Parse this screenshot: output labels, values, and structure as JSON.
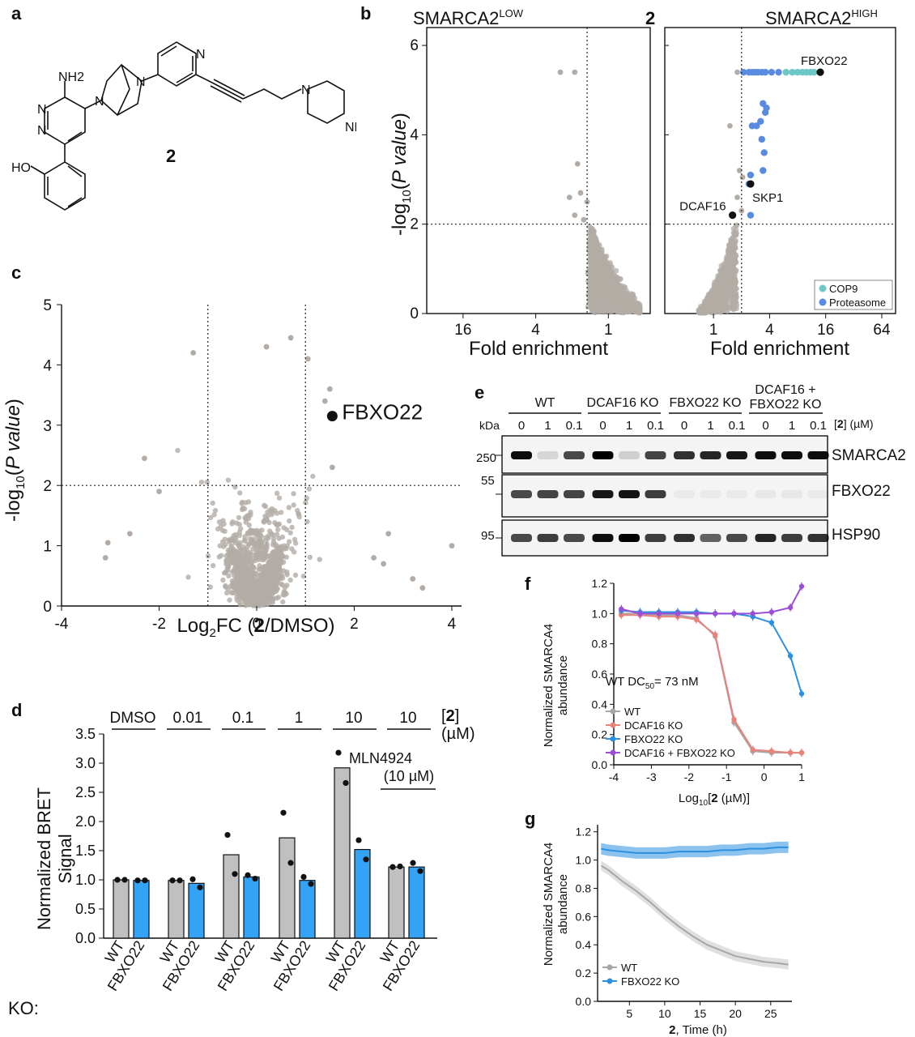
{
  "colors": {
    "gray_point": "#b3aca6",
    "cop9": "#6cc7c7",
    "proteasome": "#5b8be0",
    "bar_gray": "#c0c0c0",
    "bar_blue": "#34a3f5",
    "wt_line": "#a6a6a6",
    "dcaf16_line": "#e8837b",
    "fbxo22_line": "#2b90e0",
    "double_line": "#9b4fd6"
  },
  "panel_a": {
    "label": "a",
    "compound": "2",
    "atoms": [
      "NH2",
      "N",
      "N",
      "N",
      "N",
      "N",
      "N",
      "N",
      "NH",
      "HO"
    ]
  },
  "panel_b": {
    "label": "b",
    "left_title": "SMARCA2",
    "left_title_sup": "LOW",
    "compound": "2",
    "right_title": "SMARCA2",
    "right_title_sup": "HIGH",
    "ylabel_pre": "-log",
    "ylabel_sub": "10",
    "ylabel_italic": "P value",
    "xlabel": "Fold enrichment",
    "left_xticks": [
      "16",
      "4",
      "1"
    ],
    "right_xticks": [
      "1",
      "4",
      "16",
      "64"
    ],
    "yticks": [
      "0",
      "2",
      "4",
      "6"
    ],
    "annotations": [
      "FBXO22",
      "SKP1",
      "DCAF16"
    ],
    "legend": [
      "COP9",
      "Proteasome"
    ]
  },
  "panel_c": {
    "label": "c",
    "ylabel_pre": "-log",
    "ylabel_sub": "10",
    "ylabel_italic": "P value",
    "xlabel_pre": "Log",
    "xlabel_sub": "2",
    "xlabel_mid": "FC (",
    "xlabel_bold": "2",
    "xlabel_post": "/DMSO)",
    "xticks": [
      "-4",
      "-2",
      "0",
      "2",
      "4"
    ],
    "yticks": [
      "0",
      "1",
      "2",
      "3",
      "4",
      "5"
    ],
    "annotation": "FBXO22"
  },
  "panel_d": {
    "label": "d",
    "ylabel_1": "Normalized BRET",
    "ylabel_2": "Signal",
    "yticks": [
      "0.0",
      "0.5",
      "1.0",
      "1.5",
      "2.0",
      "2.5",
      "3.0",
      "3.5"
    ],
    "group_labels": [
      "DMSO",
      "0.01",
      "0.1",
      "1",
      "10",
      "10"
    ],
    "units_bracket_open": "[",
    "units_bold": "2",
    "units_bracket_close": "]",
    "units": "(µM)",
    "mln_1": "MLN4924",
    "mln_2": "(10 µM)",
    "ko_label": "KO:",
    "xlabels": [
      "WT",
      "FBXO22",
      "WT",
      "FBXO22",
      "WT",
      "FBXO22",
      "WT",
      "FBXO22",
      "WT",
      "FBXO22",
      "WT",
      "FBXO22"
    ]
  },
  "panel_e": {
    "label": "e",
    "groups": [
      "WT",
      "DCAF16 KO",
      "FBXO22 KO",
      "DCAF16 +",
      "FBXO22 KO"
    ],
    "doses": [
      "0",
      "1",
      "0.1",
      "0",
      "1",
      "0.1",
      "0",
      "1",
      "0.1",
      "0",
      "1",
      "0.1"
    ],
    "conc_label_open": "[",
    "conc_label_bold": "2",
    "conc_label_close": "] (µM)",
    "kda": "kDa",
    "markers": [
      "250",
      "55",
      "95"
    ],
    "blots": [
      "SMARCA2",
      "FBXO22",
      "HSP90"
    ]
  },
  "panel_f": {
    "label": "f",
    "ylabel_1": "Normalized SMARCA4",
    "ylabel_2": "abundance",
    "yticks": [
      "0.0",
      "0.2",
      "0.4",
      "0.6",
      "0.8",
      "1.0",
      "1.2"
    ],
    "xticks": [
      "-4",
      "-3",
      "-2",
      "-1",
      "0",
      "1"
    ],
    "xlabel_pre": "Log",
    "xlabel_sub": "10",
    "xlabel_bold": "2",
    "xlabel_post": " (µM)]",
    "dc50_pre": "WT DC",
    "dc50_sub": "50",
    "dc50_post": "= 73 nM",
    "legend": [
      "WT",
      "DCAF16 KO",
      "FBXO22 KO",
      "DCAF16 + FBXO22 KO"
    ]
  },
  "panel_g": {
    "label": "g",
    "ylabel_1": "Normalized SMARCA4",
    "ylabel_2": "abundance",
    "yticks": [
      "0.0",
      "0.2",
      "0.4",
      "0.6",
      "0.8",
      "1.0",
      "1.2"
    ],
    "xticks": [
      "5",
      "10",
      "15",
      "20",
      "25"
    ],
    "xlabel_bold": "2",
    "xlabel_post": ", Time (h)",
    "legend": [
      "WT",
      "FBXO22 KO"
    ]
  },
  "chart_data": [
    {
      "panel": "b-left",
      "type": "scatter",
      "title": "SMARCA2LOW",
      "xlabel": "Fold enrichment",
      "ylabel": "-log10(P value)",
      "x_scale": "log2, reversed",
      "ylim": [
        0,
        6.4
      ],
      "thresholds": {
        "x": 1.5,
        "y": 2
      },
      "series": [
        {
          "values_x": [
            2.5,
            1.9,
            1.8,
            1.7,
            2.1,
            1.9,
            1.6,
            1.5
          ],
          "values_y": [
            5.4,
            5.4,
            3.35,
            2.7,
            2.6,
            2.2,
            2.1,
            2.5
          ],
          "color": "#b3aca6"
        }
      ]
    },
    {
      "panel": "b-right",
      "type": "scatter",
      "title": "SMARCA2HIGH",
      "xlabel": "Fold enrichment",
      "x_scale": "log2",
      "ylim": [
        0,
        6.4
      ],
      "thresholds": {
        "x": 2,
        "y": 2
      },
      "series": [
        {
          "name": "COP9",
          "color": "#6cc7c7",
          "values_x": [
            6,
            7,
            8,
            9,
            10,
            11,
            12
          ],
          "values_y": [
            5.4,
            5.4,
            5.4,
            5.4,
            5.4,
            5.4,
            5.4
          ]
        },
        {
          "name": "Proteasome",
          "color": "#5b8be0",
          "values_x": [
            2.1,
            2.4,
            2.6,
            2.8,
            3,
            3.3,
            3.6,
            4.2,
            5,
            3.4,
            3.6,
            3.2,
            3.7,
            2.9,
            3.3,
            3.5,
            2.6,
            3.4,
            2.5,
            2.4,
            2.5
          ],
          "values_y": [
            5.4,
            5.4,
            5.4,
            5.4,
            5.4,
            5.4,
            5.4,
            5.4,
            5.4,
            4.7,
            4.5,
            4.3,
            4.6,
            4.2,
            3.9,
            3.6,
            4.2,
            3.2,
            3.1,
            2.9,
            2.2
          ]
        },
        {
          "name": "labeled",
          "color": "#111111",
          "labels": [
            "FBXO22",
            "SKP1",
            "DCAF16"
          ],
          "values_x": [
            14,
            2.5,
            1.6
          ],
          "values_y": [
            5.4,
            2.9,
            2.2
          ]
        }
      ]
    },
    {
      "panel": "c",
      "type": "scatter",
      "xlabel": "Log2FC (2/DMSO)",
      "ylabel": "-log10(P value)",
      "xlim": [
        -4,
        4.1
      ],
      "ylim": [
        0,
        5
      ],
      "thresholds": {
        "x": [
          -1,
          1
        ],
        "y": 2
      },
      "highlight": {
        "label": "FBXO22",
        "x": 1.55,
        "y": 3.15
      }
    },
    {
      "panel": "d",
      "type": "bar",
      "ylabel": "Normalized BRET Signal",
      "ylim": [
        0,
        3.5
      ],
      "categories": [
        "DMSO",
        "0.01",
        "0.1",
        "1",
        "10",
        "10 + MLN4924"
      ],
      "series": [
        {
          "name": "WT",
          "color": "#c0c0c0",
          "values": [
            1.0,
            0.99,
            1.43,
            1.72,
            2.92,
            1.22
          ],
          "points": [
            [
              1.0,
              1.0
            ],
            [
              0.99,
              0.99
            ],
            [
              1.77,
              1.1
            ],
            [
              2.15,
              1.29
            ],
            [
              3.18,
              2.66
            ],
            [
              1.22,
              1.23
            ]
          ]
        },
        {
          "name": "FBXO22",
          "color": "#34a3f5",
          "values": [
            0.99,
            0.94,
            1.05,
            0.99,
            1.52,
            1.22
          ],
          "points": [
            [
              0.99,
              0.99
            ],
            [
              1.01,
              0.87
            ],
            [
              1.08,
              1.02
            ],
            [
              1.05,
              0.93
            ],
            [
              1.68,
              1.35
            ],
            [
              1.29,
              1.15
            ]
          ]
        }
      ]
    },
    {
      "panel": "f",
      "type": "line",
      "xlabel": "Log10[2 (µM)]",
      "ylabel": "Normalized SMARCA4 abundance",
      "xlim": [
        -4,
        1
      ],
      "ylim": [
        0,
        1.2
      ],
      "x": [
        -3.8,
        -3.3,
        -2.8,
        -2.3,
        -1.8,
        -1.3,
        -0.8,
        -0.3,
        0.2,
        0.7,
        1.0
      ],
      "series": [
        {
          "name": "WT",
          "color": "#a6a6a6",
          "values": [
            1.0,
            1.0,
            0.99,
            0.99,
            0.97,
            0.85,
            0.28,
            0.09,
            0.08,
            0.08,
            0.08
          ]
        },
        {
          "name": "DCAF16 KO",
          "color": "#e8837b",
          "values": [
            0.99,
            0.99,
            0.98,
            0.98,
            0.96,
            0.86,
            0.3,
            0.1,
            0.09,
            0.08,
            0.08
          ]
        },
        {
          "name": "FBXO22 KO",
          "color": "#2b90e0",
          "values": [
            1.02,
            1.01,
            1.01,
            1.01,
            1.01,
            1.0,
            1.0,
            0.98,
            0.94,
            0.72,
            0.47
          ]
        },
        {
          "name": "DCAF16 + FBXO22 KO",
          "color": "#9b4fd6",
          "values": [
            1.03,
            1.0,
            1.0,
            1.0,
            1.0,
            1.0,
            1.0,
            1.0,
            1.01,
            1.04,
            1.18
          ]
        }
      ]
    },
    {
      "panel": "g",
      "type": "line",
      "xlabel": "2, Time (h)",
      "ylabel": "Normalized SMARCA4 abundance",
      "xlim": [
        0.5,
        28
      ],
      "ylim": [
        0,
        1.2
      ],
      "x": [
        1,
        2,
        4,
        6,
        8,
        10,
        12,
        14,
        16,
        18,
        20,
        22,
        24,
        26,
        27.5
      ],
      "series": [
        {
          "name": "WT",
          "color": "#a6a6a6",
          "values": [
            0.96,
            0.93,
            0.85,
            0.78,
            0.7,
            0.61,
            0.53,
            0.46,
            0.4,
            0.36,
            0.32,
            0.3,
            0.28,
            0.27,
            0.26
          ]
        },
        {
          "name": "FBXO22 KO",
          "color": "#2b90e0",
          "values": [
            1.08,
            1.07,
            1.06,
            1.05,
            1.05,
            1.05,
            1.06,
            1.06,
            1.06,
            1.07,
            1.07,
            1.08,
            1.08,
            1.09,
            1.09
          ]
        }
      ]
    }
  ]
}
